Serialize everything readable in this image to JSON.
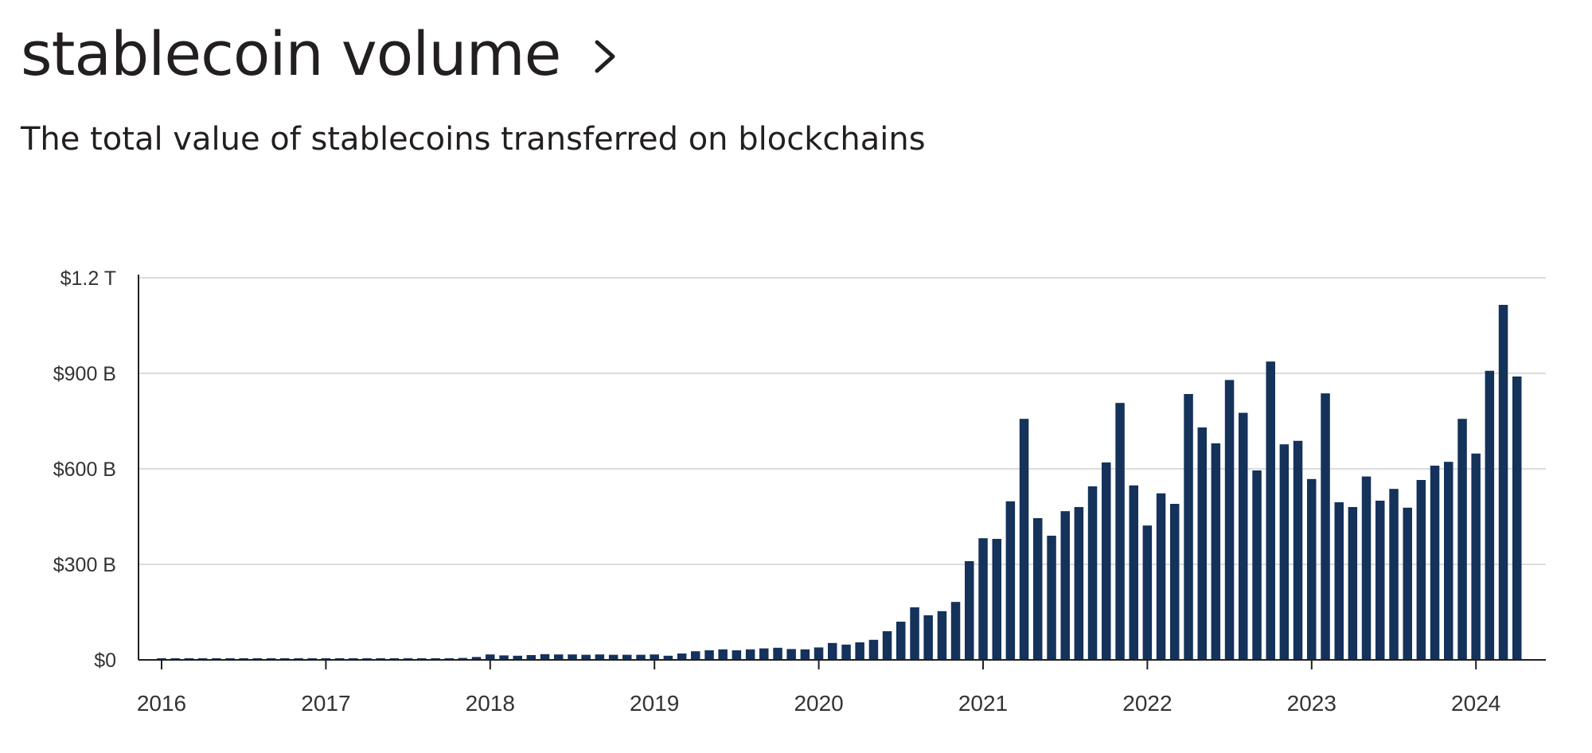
{
  "header": {
    "title": "stablecoin volume",
    "subtitle": "The total value of stablecoins transferred on blockchains"
  },
  "colors": {
    "bar": "#14325a",
    "grid": "#dcdcdc",
    "axis": "#231f20",
    "text": "#231f20"
  },
  "icons": {
    "title_link": "chevron-right-icon"
  },
  "chart_data": {
    "type": "bar",
    "title": "stablecoin volume",
    "subtitle": "The total value of stablecoins transferred on blockchains",
    "xlabel": "",
    "ylabel": "",
    "y_unit": "billions USD",
    "ylim": [
      0,
      1200
    ],
    "yticks": [
      {
        "value": 0,
        "label": "$0"
      },
      {
        "value": 300,
        "label": "$300 B"
      },
      {
        "value": 600,
        "label": "$600 B"
      },
      {
        "value": 900,
        "label": "$900 B"
      },
      {
        "value": 1200,
        "label": "$1.2 T"
      }
    ],
    "xticks": [
      "2016",
      "2017",
      "2018",
      "2019",
      "2020",
      "2021",
      "2022",
      "2023",
      "2024"
    ],
    "start": "2016-01",
    "grid": true,
    "legend": "none",
    "values": [
      2,
      2,
      2,
      2,
      2,
      2,
      2,
      2,
      2,
      2,
      2,
      2,
      3,
      3,
      3,
      3,
      3,
      3,
      3,
      4,
      4,
      5,
      6,
      9,
      17,
      14,
      13,
      15,
      18,
      17,
      17,
      16,
      17,
      16,
      16,
      16,
      17,
      13,
      20,
      27,
      30,
      33,
      30,
      33,
      36,
      38,
      34,
      33,
      39,
      53,
      48,
      55,
      63,
      90,
      120,
      165,
      140,
      153,
      182,
      310,
      382,
      380,
      498,
      757,
      445,
      390,
      467,
      480,
      545,
      620,
      807,
      548,
      422,
      523,
      490,
      835,
      730,
      680,
      879,
      776,
      595,
      937,
      677,
      688,
      568,
      837,
      495,
      480,
      576,
      500,
      537,
      478,
      565,
      610,
      622,
      757,
      648,
      908,
      1115,
      890
    ]
  }
}
